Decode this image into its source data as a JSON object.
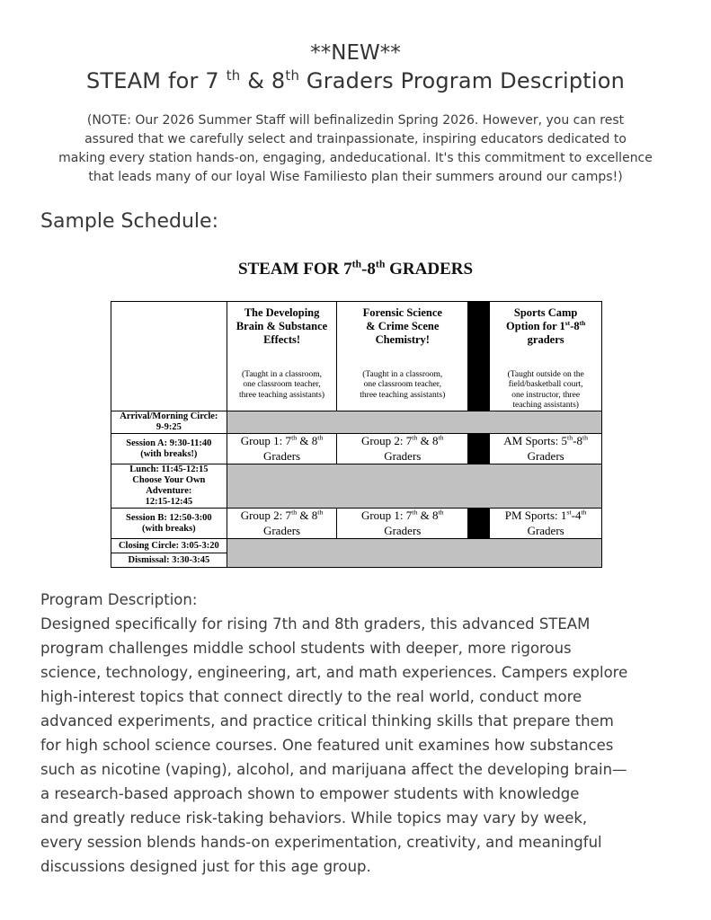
{
  "page": {
    "new_banner": "**NEW**",
    "title": "STEAM for 7 ^th^ & 8^th^ Graders Program Description",
    "note": "(NOTE: Our 2026 Summer Staff will befinalizedin Spring 2026. However, you can rest\nassured that we carefully select and trainpassionate, inspiring educators dedicated to\nmaking every station hands-on, engaging, andeducational. It's this commitment to excellence\nthat leads many of our loyal Wise Familiesto plan their summers around our camps!)",
    "sample_schedule_heading": "Sample Schedule:",
    "program_description_heading": "Program Description:",
    "program_description_body": "Designed specifically for rising 7th and 8th graders, this advanced STEAM\nprogram challenges middle school students with deeper, more rigorous\nscience, technology, engineering, art, and math experiences. Campers explore\nhigh-interest topics that connect directly to the real world, conduct more\nadvanced experiments, and practice critical thinking skills that prepare them\nfor high school science courses. One featured unit examines how substances\nsuch as nicotine (vaping), alcohol, and marijuana affect the developing brain—\na research-based approach shown to empower students with knowledge\nand greatly reduce risk-taking behaviors. While topics may vary by week,\nevery session blends hands-on experimentation, creativity, and meaningful\ndiscussions designed just for this age group."
  },
  "schedule": {
    "table_title": "STEAM FOR 7^th^-8^th^ GRADERS",
    "columns": [
      {
        "title": "The Developing\nBrain & Substance\nEffects!",
        "subtitle": "(Taught in a classroom,\none classroom teacher,\nthree teaching assistants)"
      },
      {
        "title": "Forensic Science\n& Crime Scene\nChemistry!",
        "subtitle": "(Taught in a classroom,\none classroom teacher,\nthree teaching assistants)"
      },
      {
        "title": "Sports Camp\nOption for 1^st^-8^th^\ngraders",
        "subtitle": "(Taught outside on the\nfield/basketball court,\none instructor, three\nteaching assistants)"
      }
    ],
    "rows": [
      {
        "label": "Arrival/Morning Circle:\n9-9:25",
        "type": "break"
      },
      {
        "label": "Session A: 9:30-11:40\n(with breaks!)",
        "type": "session",
        "cells": [
          "Group 1: 7^th^ & 8^th^\nGraders",
          "Group 2: 7^th^ & 8^th^\nGraders",
          "AM Sports: 5^th^-8^th^\nGraders"
        ]
      },
      {
        "label": "Lunch: 11:45-12:15\nChoose Your Own\nAdventure:\n12:15-12:45",
        "type": "break"
      },
      {
        "label": "Session B: 12:50-3:00\n(with breaks)",
        "type": "session",
        "cells": [
          "Group 2: 7^th^ & 8^th^\nGraders",
          "Group 1: 7^th^ & 8^th^\nGraders",
          "PM Sports: 1^st^-4^th^\nGraders"
        ]
      },
      {
        "label": "Closing Circle: 3:05-3:20",
        "type": "break"
      },
      {
        "label": "Dismissal: 3:30-3:45",
        "type": "break"
      }
    ],
    "colors": {
      "gray_row": "#c1c1c1",
      "divider_column": "#000000"
    }
  }
}
